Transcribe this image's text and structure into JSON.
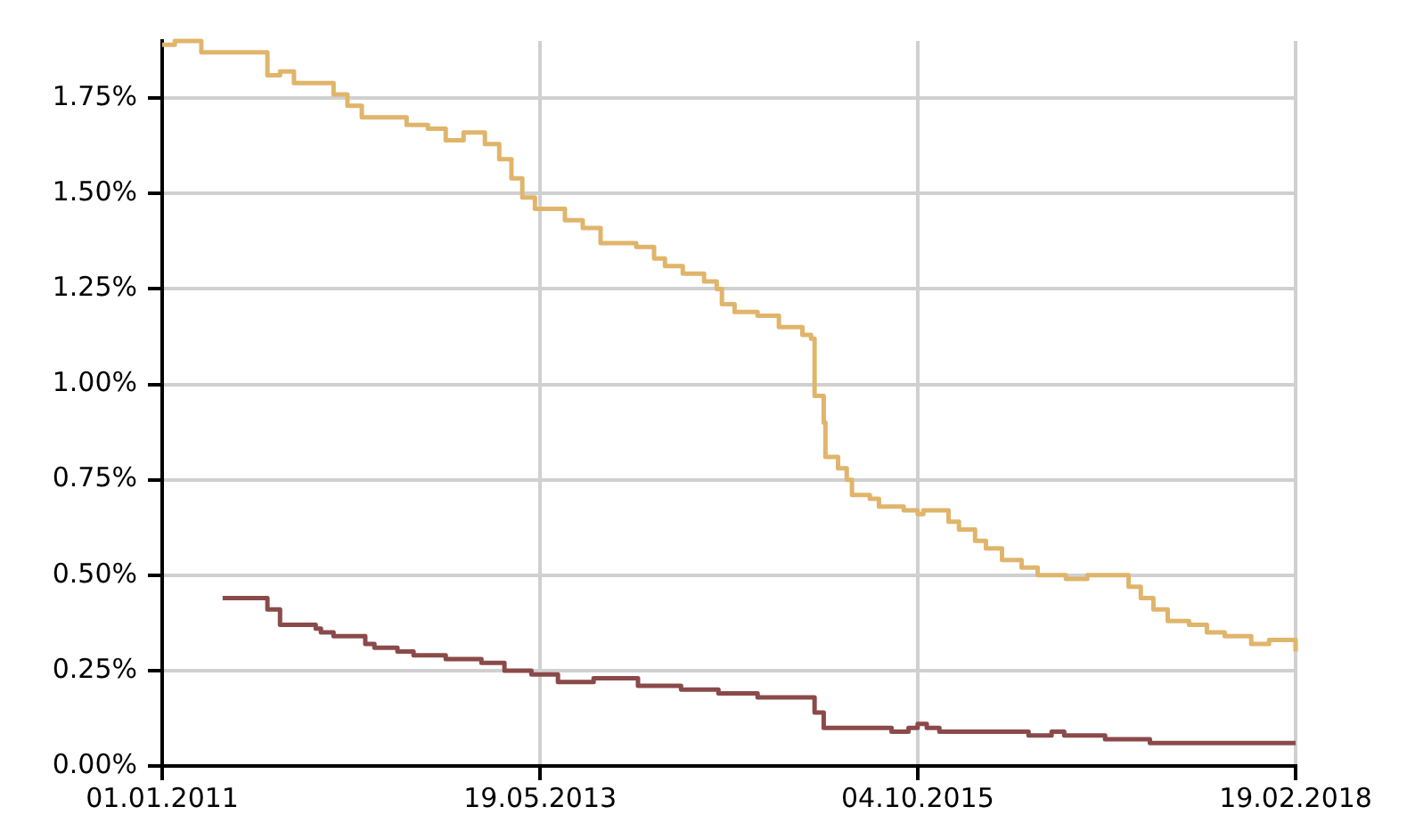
{
  "chart_data": {
    "type": "step",
    "xlim": [
      "2011-01-01",
      "2018-02-19"
    ],
    "xticks": [
      {
        "value": "2011-01-01",
        "label": "01.01.2011"
      },
      {
        "value": "2013-05-19",
        "label": "19.05.2013"
      },
      {
        "value": "2015-10-04",
        "label": "04.10.2015"
      },
      {
        "value": "2018-02-19",
        "label": "19.02.2018"
      }
    ],
    "ylim": [
      0,
      1.9
    ],
    "yticks": [
      {
        "value": 0,
        "label": "0.00%"
      },
      {
        "value": 0.25,
        "label": "0.25%"
      },
      {
        "value": 0.5,
        "label": "0.50%"
      },
      {
        "value": 0.75,
        "label": "0.75%"
      },
      {
        "value": 1,
        "label": "1.00%"
      },
      {
        "value": 1.25,
        "label": "1.25%"
      },
      {
        "value": 1.5,
        "label": "1.50%"
      },
      {
        "value": 1.75,
        "label": "1.75%"
      }
    ],
    "grid": true,
    "legend": false,
    "marker": "none",
    "line_style": "solid",
    "series": [
      {
        "color": "#e0b56b",
        "x": [
          "2011-01-01",
          "2011-01-30",
          "2011-04-01",
          "2011-07-29",
          "2011-08-31",
          "2011-09-29",
          "2011-10-31",
          "2011-12-24",
          "2012-01-30",
          "2012-03-02",
          "2012-04-04",
          "2012-06-25",
          "2012-07-16",
          "2012-09-03",
          "2012-10-14",
          "2012-11-24",
          "2012-12-27",
          "2013-01-12",
          "2013-02-14",
          "2013-03-14",
          "2013-04-08",
          "2013-05-07",
          "2013-06-17",
          "2013-07-15",
          "2013-08-25",
          "2013-10-05",
          "2013-12-26",
          "2014-02-05",
          "2014-03-02",
          "2014-04-12",
          "2014-05-31",
          "2014-06-29",
          "2014-07-11",
          "2014-08-09",
          "2014-10-01",
          "2014-11-19",
          "2015-01-12",
          "2015-02-01",
          "2015-02-09",
          "2015-03-02",
          "2015-03-06",
          "2015-04-04",
          "2015-04-24",
          "2015-05-06",
          "2015-06-16",
          "2015-07-07",
          "2015-09-02",
          "2015-10-04",
          "2015-10-17",
          "2015-11-23",
          "2015-12-14",
          "2016-01-07",
          "2016-02-13",
          "2016-03-09",
          "2016-04-15",
          "2016-05-30",
          "2016-07-06",
          "2016-09-09",
          "2016-10-28",
          "2017-01-06",
          "2017-01-31",
          "2017-02-28",
          "2017-03-29",
          "2017-05-01",
          "2017-06-19",
          "2017-07-30",
          "2017-09-09",
          "2017-10-04",
          "2017-11-09",
          "2017-12-20",
          "2018-02-04",
          "2018-02-19"
        ],
        "values": [
          1.89,
          1.9,
          1.87,
          1.87,
          1.81,
          1.82,
          1.79,
          1.79,
          1.76,
          1.73,
          1.7,
          1.7,
          1.68,
          1.67,
          1.64,
          1.66,
          1.66,
          1.63,
          1.59,
          1.54,
          1.49,
          1.46,
          1.46,
          1.43,
          1.41,
          1.37,
          1.36,
          1.33,
          1.31,
          1.29,
          1.27,
          1.25,
          1.21,
          1.19,
          1.18,
          1.15,
          1.13,
          1.12,
          0.97,
          0.9,
          0.81,
          0.78,
          0.75,
          0.71,
          0.7,
          0.68,
          0.67,
          0.66,
          0.67,
          0.67,
          0.64,
          0.62,
          0.59,
          0.57,
          0.54,
          0.52,
          0.5,
          0.49,
          0.5,
          0.5,
          0.47,
          0.44,
          0.41,
          0.38,
          0.37,
          0.35,
          0.34,
          0.34,
          0.32,
          0.33,
          0.33,
          0.3
        ]
      },
      {
        "color": "#8b4a4a",
        "x": [
          "2011-05-20",
          "2011-08-31",
          "2011-09-29",
          "2011-12-20",
          "2012-01-01",
          "2012-01-30",
          "2012-04-12",
          "2012-05-03",
          "2012-06-25",
          "2012-08-01",
          "2012-10-14",
          "2013-01-04",
          "2013-02-26",
          "2013-03-19",
          "2013-04-29",
          "2013-06-29",
          "2013-09-19",
          "2013-12-30",
          "2014-04-08",
          "2014-07-03",
          "2014-10-01",
          "2015-01-24",
          "2015-02-09",
          "2015-03-02",
          "2015-08-05",
          "2015-09-13",
          "2015-10-04",
          "2015-10-25",
          "2015-11-23",
          "2016-06-15",
          "2016-08-07",
          "2016-09-05",
          "2016-12-08",
          "2017-03-21",
          "2018-02-19"
        ],
        "values": [
          0.44,
          0.41,
          0.37,
          0.36,
          0.35,
          0.34,
          0.32,
          0.31,
          0.3,
          0.29,
          0.28,
          0.27,
          0.25,
          0.25,
          0.24,
          0.22,
          0.23,
          0.21,
          0.2,
          0.19,
          0.18,
          0.18,
          0.14,
          0.1,
          0.09,
          0.1,
          0.11,
          0.1,
          0.09,
          0.08,
          0.09,
          0.08,
          0.07,
          0.06,
          0.06
        ]
      }
    ]
  }
}
